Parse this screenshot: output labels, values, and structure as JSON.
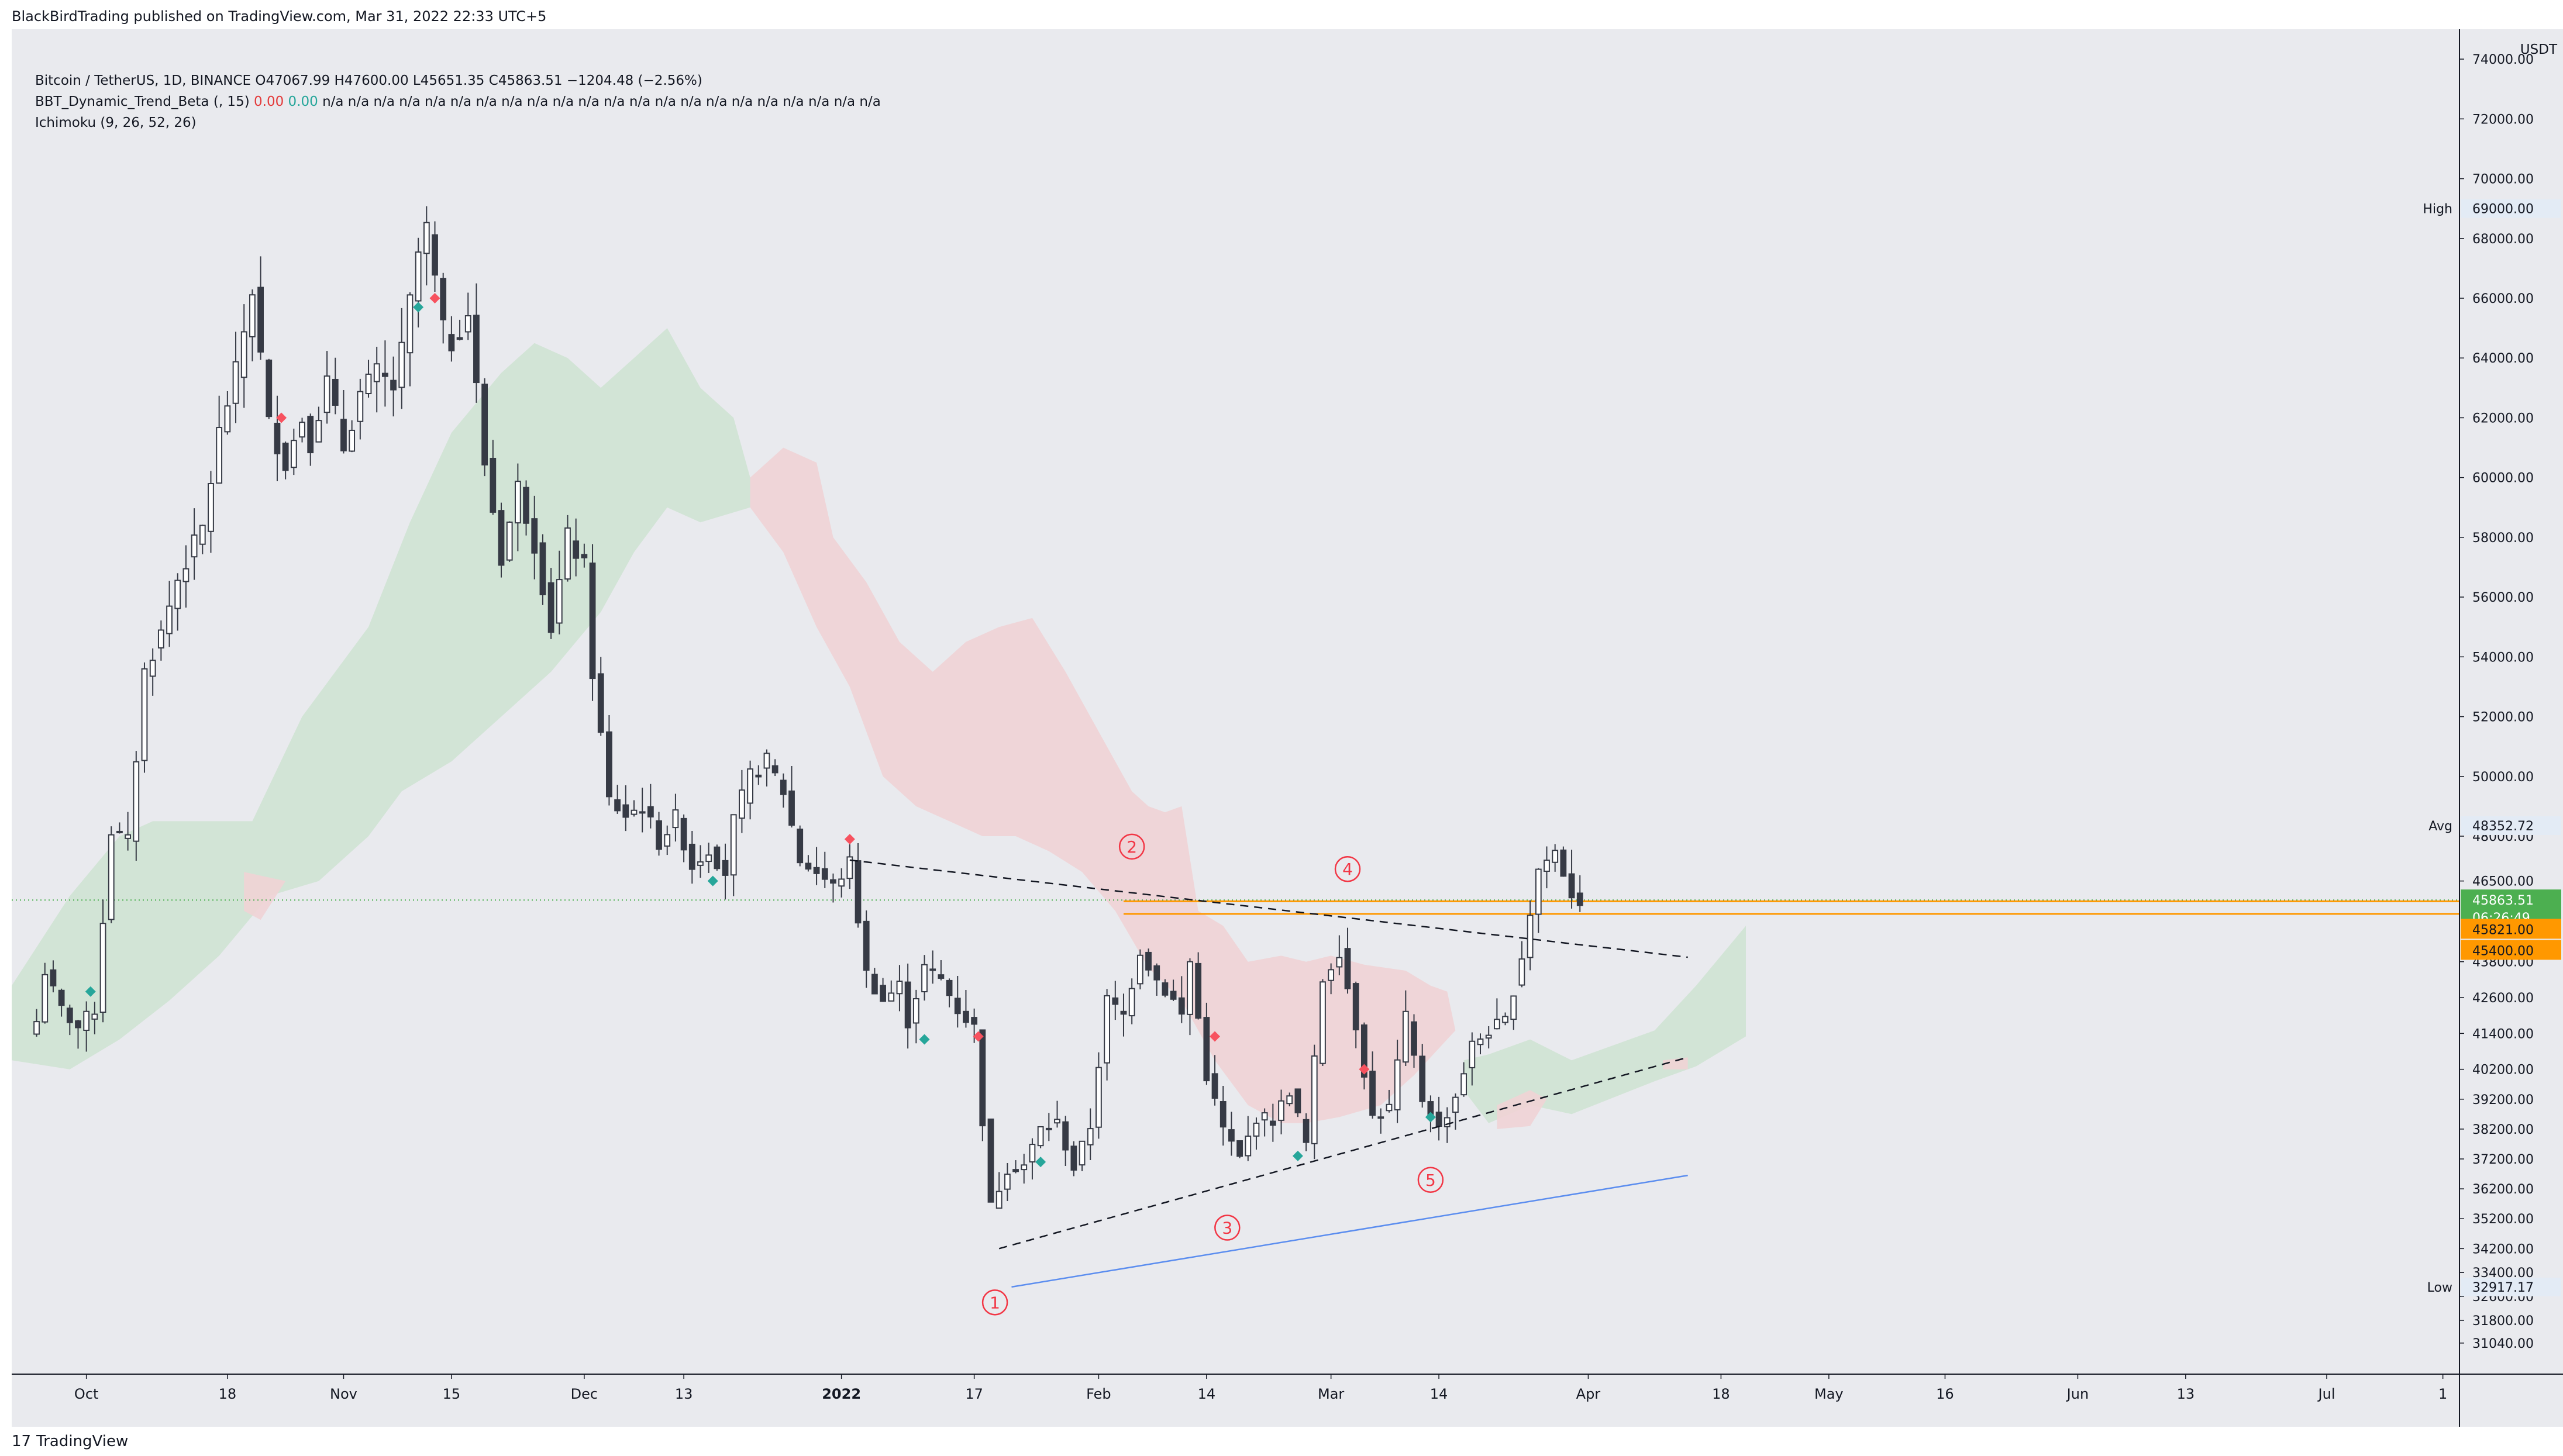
{
  "publisher": "BlackBirdTrading published on TradingView.com, Mar 31, 2022 22:33 UTC+5",
  "legend": {
    "symbol": "Bitcoin / TetherUS, 1D, BINANCE",
    "ohlc": "O47067.99 H47600.00 L45651.35 C45863.51 −1204.48 (−2.56%)",
    "indicator1_name": "BBT_Dynamic_Trend_Beta (, 15)",
    "indicator1_v1": "0.00",
    "indicator1_v2": "0.00",
    "indicator1_rest": "n/a n/a n/a n/a n/a n/a n/a n/a n/a n/a n/a n/a n/a n/a n/a n/a n/a n/a n/a n/a n/a n/a",
    "indicator2": "Ichimoku (9, 26, 52, 26)"
  },
  "colors": {
    "up": "#ffffff",
    "down": "#363a45",
    "cloud_green": "#cfe3d3",
    "cloud_red": "#f0d3d5",
    "marker_red": "#f7525f",
    "marker_green": "#26a69a",
    "price_line": "#4caf50",
    "support": "#ff9800",
    "trendline_blue": "#5b8def"
  },
  "footer_logo": "TradingView",
  "chart_data": {
    "type": "candlestick",
    "title": "Bitcoin / TetherUS, 1D, BINANCE",
    "currency": "USDT",
    "ylim": [
      30000,
      75000
    ],
    "y_ticks": [
      31040,
      31800,
      32600,
      33400,
      34200,
      35200,
      36200,
      37200,
      38200,
      39200,
      40200,
      41400,
      42600,
      43800,
      46500,
      48000,
      50000,
      52000,
      54000,
      56000,
      58000,
      60000,
      62000,
      64000,
      66000,
      68000,
      70000,
      72000,
      74000
    ],
    "y_tick_labels": [
      "31040.00",
      "31800.00",
      "32600.00",
      "33400.00",
      "34200.00",
      "35200.00",
      "36200.00",
      "37200.00",
      "38200.00",
      "39200.00",
      "40200.00",
      "41400.00",
      "42600.00",
      "43800.00",
      "46500.00",
      "48000.00",
      "50000.00",
      "52000.00",
      "54000.00",
      "56000.00",
      "58000.00",
      "60000.00",
      "62000.00",
      "64000.00",
      "66000.00",
      "68000.00",
      "70000.00",
      "72000.00",
      "74000.00"
    ],
    "x_ticks": [
      {
        "day": 6,
        "label": "Oct",
        "bold": false
      },
      {
        "day": 23,
        "label": "18",
        "bold": false
      },
      {
        "day": 37,
        "label": "Nov",
        "bold": false
      },
      {
        "day": 50,
        "label": "15",
        "bold": false
      },
      {
        "day": 66,
        "label": "Dec",
        "bold": false
      },
      {
        "day": 78,
        "label": "13",
        "bold": false
      },
      {
        "day": 97,
        "label": "2022",
        "bold": true
      },
      {
        "day": 113,
        "label": "17",
        "bold": false
      },
      {
        "day": 128,
        "label": "Feb",
        "bold": false
      },
      {
        "day": 141,
        "label": "14",
        "bold": false
      },
      {
        "day": 156,
        "label": "Mar",
        "bold": false
      },
      {
        "day": 169,
        "label": "14",
        "bold": false
      },
      {
        "day": 187,
        "label": "Apr",
        "bold": false
      },
      {
        "day": 203,
        "label": "18",
        "bold": false
      },
      {
        "day": 216,
        "label": "May",
        "bold": false
      },
      {
        "day": 230,
        "label": "16",
        "bold": false
      },
      {
        "day": 246,
        "label": "Jun",
        "bold": false
      },
      {
        "day": 259,
        "label": "13",
        "bold": false
      },
      {
        "day": 276,
        "label": "Jul",
        "bold": false
      },
      {
        "day": 290,
        "label": "1",
        "bold": false
      }
    ],
    "day_range": [
      -3,
      292
    ],
    "anchors": [
      [
        0,
        41800
      ],
      [
        1,
        43500
      ],
      [
        2,
        42800
      ],
      [
        3,
        42200
      ],
      [
        5,
        41600
      ],
      [
        7,
        42200
      ],
      [
        9,
        48200
      ],
      [
        11,
        47800
      ],
      [
        13,
        53500
      ],
      [
        15,
        54800
      ],
      [
        17,
        56600
      ],
      [
        18,
        57200
      ],
      [
        20,
        58300
      ],
      [
        22,
        61500
      ],
      [
        24,
        63500
      ],
      [
        26,
        66300
      ],
      [
        28,
        61800
      ],
      [
        30,
        60500
      ],
      [
        32,
        62000
      ],
      [
        33,
        61200
      ],
      [
        35,
        63200
      ],
      [
        37,
        61000
      ],
      [
        39,
        62800
      ],
      [
        41,
        63500
      ],
      [
        43,
        63000
      ],
      [
        44,
        64200
      ],
      [
        46,
        67500
      ],
      [
        47,
        68300
      ],
      [
        49,
        64900
      ],
      [
        50,
        64500
      ],
      [
        52,
        65500
      ],
      [
        54,
        60500
      ],
      [
        56,
        57300
      ],
      [
        58,
        59700
      ],
      [
        60,
        57800
      ],
      [
        62,
        55000
      ],
      [
        64,
        58000
      ],
      [
        66,
        57000
      ],
      [
        67,
        53500
      ],
      [
        69,
        49200
      ],
      [
        71,
        48700
      ],
      [
        73,
        49000
      ],
      [
        75,
        47800
      ],
      [
        77,
        48600
      ],
      [
        79,
        47000
      ],
      [
        81,
        47600
      ],
      [
        83,
        46800
      ],
      [
        84,
        48500
      ],
      [
        86,
        50000
      ],
      [
        88,
        50500
      ],
      [
        90,
        49500
      ],
      [
        92,
        47200
      ],
      [
        94,
        46800
      ],
      [
        96,
        46300
      ],
      [
        98,
        47100
      ],
      [
        100,
        43400
      ],
      [
        102,
        42500
      ],
      [
        104,
        43000
      ],
      [
        105,
        41800
      ],
      [
        107,
        43600
      ],
      [
        109,
        43200
      ],
      [
        111,
        42200
      ],
      [
        113,
        41600
      ],
      [
        114,
        38500
      ],
      [
        115,
        35600
      ],
      [
        117,
        36900
      ],
      [
        119,
        37000
      ],
      [
        121,
        38200
      ],
      [
        123,
        38400
      ],
      [
        125,
        36900
      ],
      [
        127,
        38300
      ],
      [
        129,
        42500
      ],
      [
        131,
        42000
      ],
      [
        133,
        44200
      ],
      [
        135,
        43200
      ],
      [
        137,
        42500
      ],
      [
        138,
        42000
      ],
      [
        139,
        43800
      ],
      [
        141,
        40000
      ],
      [
        143,
        38200
      ],
      [
        145,
        37200
      ],
      [
        147,
        38600
      ],
      [
        149,
        38500
      ],
      [
        151,
        39500
      ],
      [
        153,
        37700
      ],
      [
        155,
        43200
      ],
      [
        157,
        44200
      ],
      [
        159,
        41700
      ],
      [
        161,
        38600
      ],
      [
        163,
        38900
      ],
      [
        165,
        41900
      ],
      [
        167,
        39200
      ],
      [
        169,
        38200
      ],
      [
        171,
        39300
      ],
      [
        173,
        41000
      ],
      [
        175,
        41500
      ],
      [
        177,
        41800
      ],
      [
        179,
        44000
      ],
      [
        181,
        46900
      ],
      [
        183,
        47500
      ],
      [
        185,
        46100
      ],
      [
        186,
        45864
      ]
    ],
    "high": {
      "label": "High",
      "value": "69000.00"
    },
    "avg": {
      "label": "Avg",
      "value": "48352.72"
    },
    "low": {
      "label": "Low",
      "value": "32917.17"
    },
    "price_labels": [
      {
        "value": "45863.51",
        "sub": "06:26:49"
      },
      {
        "value": "45821.00"
      },
      {
        "value": "45400.00"
      }
    ],
    "price_values": {
      "last": 45863.51,
      "s1": 45821.0,
      "s2": 45400.0
    },
    "wave_labels": [
      {
        "label": "1",
        "day": 115.5,
        "price": 32400
      },
      {
        "label": "2",
        "day": 132,
        "price": 47650
      },
      {
        "label": "3",
        "day": 143.5,
        "price": 34900
      },
      {
        "label": "4",
        "day": 158,
        "price": 46900
      },
      {
        "label": "5",
        "day": 168,
        "price": 36500
      }
    ],
    "trendlines": [
      {
        "name": "upper-trendline",
        "style": "dashed",
        "from": [
          98,
          47200
        ],
        "to": [
          199,
          43950
        ]
      },
      {
        "name": "lower-trendline",
        "style": "dashed",
        "from": [
          116,
          34200
        ],
        "to": [
          199,
          40600
        ]
      },
      {
        "name": "base-trendline",
        "style": "solid",
        "from": [
          117.5,
          32917
        ],
        "to": [
          199,
          36650
        ]
      }
    ],
    "markers": [
      {
        "color": "red",
        "day": 98,
        "price": 47900
      },
      {
        "color": "red",
        "day": 113.5,
        "price": 41300
      },
      {
        "color": "red",
        "day": 142,
        "price": 41300
      },
      {
        "color": "red",
        "day": 160,
        "price": 40200
      },
      {
        "color": "red",
        "day": 29.5,
        "price": 62000
      },
      {
        "color": "red",
        "day": 48,
        "price": 66000
      },
      {
        "color": "green",
        "day": 6.5,
        "price": 42800
      },
      {
        "color": "green",
        "day": 46,
        "price": 65700
      },
      {
        "color": "green",
        "day": 81.5,
        "price": 46500
      },
      {
        "color": "green",
        "day": 107,
        "price": 41200
      },
      {
        "color": "green",
        "day": 121,
        "price": 37100
      },
      {
        "color": "green",
        "day": 152,
        "price": 37300
      },
      {
        "color": "green",
        "day": 168,
        "price": 38600
      }
    ],
    "cloud_green": [
      [
        [
          -3,
          43000
        ],
        [
          4,
          46000
        ],
        [
          10,
          48000
        ],
        [
          14,
          48500
        ],
        [
          26,
          48500
        ],
        [
          32,
          52000
        ],
        [
          40,
          55000
        ],
        [
          45,
          58500
        ],
        [
          50,
          61500
        ],
        [
          56,
          63500
        ],
        [
          60,
          64500
        ],
        [
          64,
          64000
        ],
        [
          68,
          63000
        ],
        [
          72,
          64000
        ],
        [
          76,
          65000
        ],
        [
          80,
          63000
        ],
        [
          84,
          62000
        ],
        [
          86,
          60000
        ],
        [
          86,
          59000
        ],
        [
          80,
          58500
        ],
        [
          76,
          59000
        ],
        [
          72,
          57500
        ],
        [
          68,
          55500
        ],
        [
          62,
          53500
        ],
        [
          56,
          52000
        ],
        [
          50,
          50500
        ],
        [
          44,
          49500
        ],
        [
          40,
          48000
        ],
        [
          34,
          46500
        ],
        [
          28,
          46000
        ],
        [
          22,
          44000
        ],
        [
          16,
          42500
        ],
        [
          10,
          41200
        ],
        [
          4,
          40200
        ],
        [
          -3,
          40500
        ]
      ],
      [
        [
          172,
          40500
        ],
        [
          175,
          40700
        ],
        [
          180,
          41200
        ],
        [
          185,
          40500
        ],
        [
          195,
          41500
        ],
        [
          200,
          43000
        ],
        [
          206,
          45000
        ],
        [
          206,
          41300
        ],
        [
          200,
          40300
        ],
        [
          195,
          39800
        ],
        [
          185,
          38700
        ],
        [
          180,
          39000
        ],
        [
          175,
          38400
        ],
        [
          172,
          39500
        ]
      ]
    ],
    "cloud_red": [
      [
        [
          25,
          46800
        ],
        [
          30,
          46500
        ],
        [
          27,
          45200
        ],
        [
          25,
          45500
        ]
      ],
      [
        [
          86,
          60000
        ],
        [
          90,
          61000
        ],
        [
          94,
          60500
        ],
        [
          96,
          58000
        ],
        [
          100,
          56500
        ],
        [
          104,
          54500
        ],
        [
          108,
          53500
        ],
        [
          112,
          54500
        ],
        [
          116,
          55000
        ],
        [
          120,
          55300
        ],
        [
          124,
          53500
        ],
        [
          128,
          51500
        ],
        [
          132,
          49500
        ],
        [
          134,
          49000
        ],
        [
          136,
          48800
        ],
        [
          138,
          49000
        ],
        [
          140,
          45500
        ],
        [
          143,
          45000
        ],
        [
          146,
          43800
        ],
        [
          150,
          44000
        ],
        [
          153,
          43800
        ],
        [
          156,
          44000
        ],
        [
          160,
          43700
        ],
        [
          165,
          43500
        ],
        [
          168,
          43000
        ],
        [
          170,
          42800
        ],
        [
          171,
          41500
        ],
        [
          166,
          40000
        ],
        [
          162,
          39000
        ],
        [
          157,
          38600
        ],
        [
          153,
          38400
        ],
        [
          150,
          38400
        ],
        [
          146,
          39000
        ],
        [
          142,
          40500
        ],
        [
          140,
          41500
        ],
        [
          138,
          42500
        ],
        [
          134,
          43600
        ],
        [
          130,
          45500
        ],
        [
          126,
          46800
        ],
        [
          122,
          47500
        ],
        [
          118,
          48000
        ],
        [
          114,
          48000
        ],
        [
          110,
          48500
        ],
        [
          106,
          49000
        ],
        [
          102,
          50000
        ],
        [
          98,
          53000
        ],
        [
          94,
          55000
        ],
        [
          90,
          57500
        ],
        [
          86,
          59000
        ]
      ],
      [
        [
          176,
          39000
        ],
        [
          180,
          39500
        ],
        [
          182,
          39200
        ],
        [
          180,
          38300
        ],
        [
          176,
          38200
        ]
      ],
      [
        [
          196,
          40500
        ],
        [
          199,
          40600
        ],
        [
          199,
          40200
        ],
        [
          196,
          40200
        ]
      ]
    ]
  }
}
